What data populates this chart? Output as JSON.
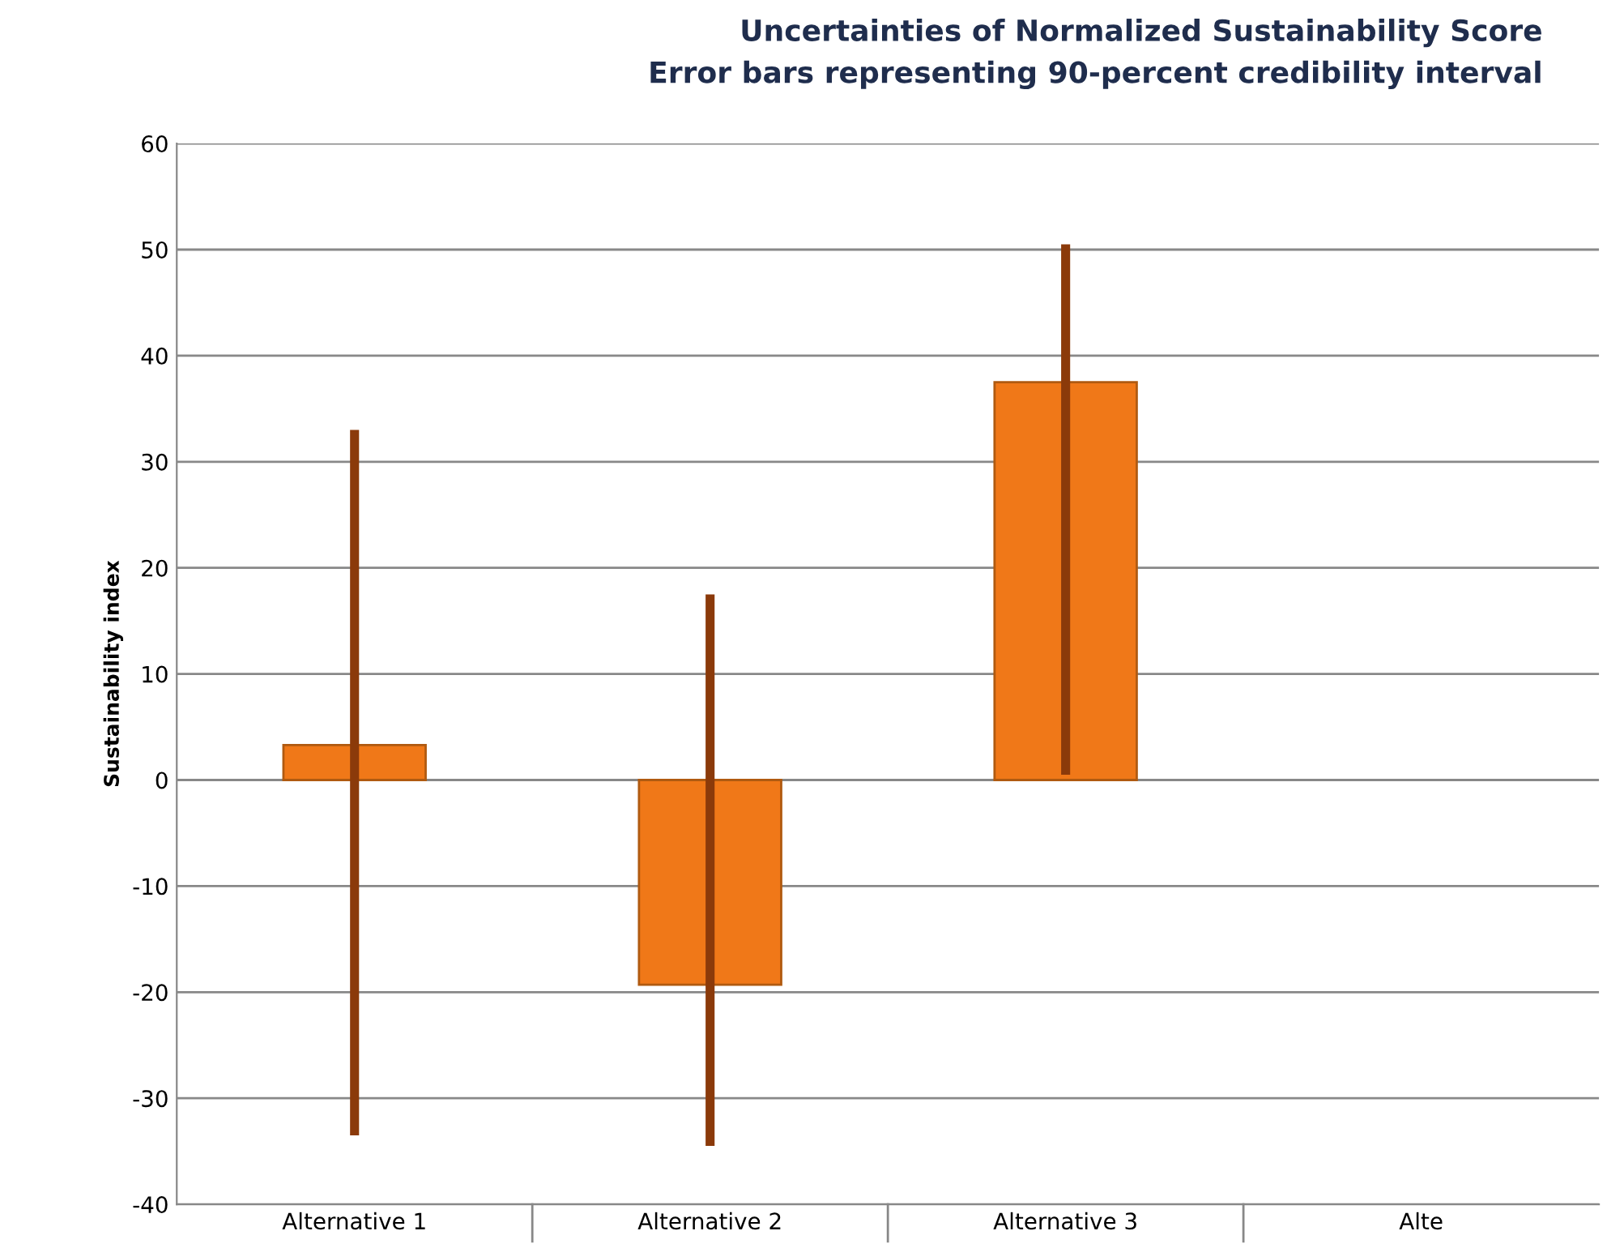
{
  "chart_data": {
    "type": "bar",
    "title": "Uncertainties of Normalized Sustainability Score\nError bars representing 90-percent credibility interval",
    "ylabel": "Sustainability index",
    "categories": [
      "Alternative 1",
      "Alternative 2",
      "Alternative 3",
      "Alte"
    ],
    "values": [
      3.3,
      -19.3,
      37.5,
      null
    ],
    "errors": [
      [
        -33.5,
        33
      ],
      [
        -34.5,
        17.5
      ],
      [
        0.5,
        50.5
      ],
      null
    ],
    "color": "#f07818",
    "ylim": [
      -40,
      60
    ],
    "yticks": [
      -40,
      -30,
      -20,
      -10,
      0,
      10,
      20,
      30,
      40,
      50,
      60
    ],
    "grid": "y"
  }
}
